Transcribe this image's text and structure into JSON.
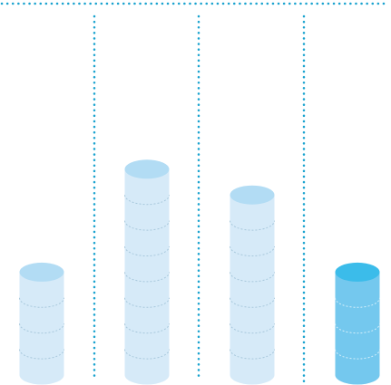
{
  "chart_data": {
    "type": "bar",
    "style": "stacked cylinders (coin stacks)",
    "categories": [
      "",
      "",
      "",
      ""
    ],
    "values": [
      4,
      8,
      7,
      4
    ],
    "ylim": [
      0,
      8
    ],
    "grid": false,
    "legend": "none",
    "title": "",
    "xlabel": "",
    "ylabel": "",
    "highlighted_index": 3
  },
  "colors": {
    "cylinder_body": "#d6eaf8",
    "cylinder_top": "#b2dcf4",
    "cylinder_seam": "#a8c8dc",
    "highlight_body": "#74c8ee",
    "highlight_top": "#3bbcea",
    "highlight_seam": "#d4eefa",
    "separator": "#1aa3cf"
  }
}
